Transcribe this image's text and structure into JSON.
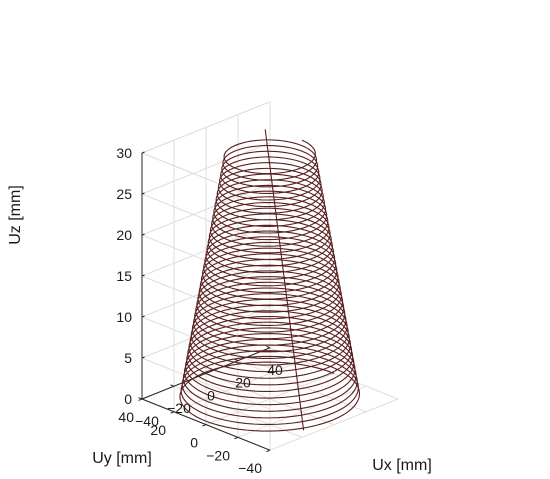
{
  "chart_data": {
    "type": "line3d",
    "title": "",
    "xlabel": "Ux [mm]",
    "ylabel": "Uy [mm]",
    "zlabel": "Uz [mm]",
    "xlim": [
      -40,
      40
    ],
    "ylim": [
      -40,
      40
    ],
    "zlim": [
      0,
      30
    ],
    "xticks": [
      "−40",
      "−20",
      "0",
      "20",
      "40"
    ],
    "yticks": [
      "−40",
      "−20",
      "0",
      "20",
      "40"
    ],
    "zticks": [
      "0",
      "5",
      "10",
      "15",
      "20",
      "25",
      "30"
    ],
    "grid": true,
    "line_color": "#5a1f1f",
    "series": [
      {
        "kind": "conical-helix",
        "radius_bottom": 40,
        "radius_top": 20,
        "z_start": 0,
        "z_end": 30,
        "turns": 40,
        "seam": [
          {
            "x": -14,
            "y": -35,
            "z": 0
          },
          {
            "x": 17,
            "y": 20,
            "z": 30
          }
        ]
      }
    ]
  }
}
